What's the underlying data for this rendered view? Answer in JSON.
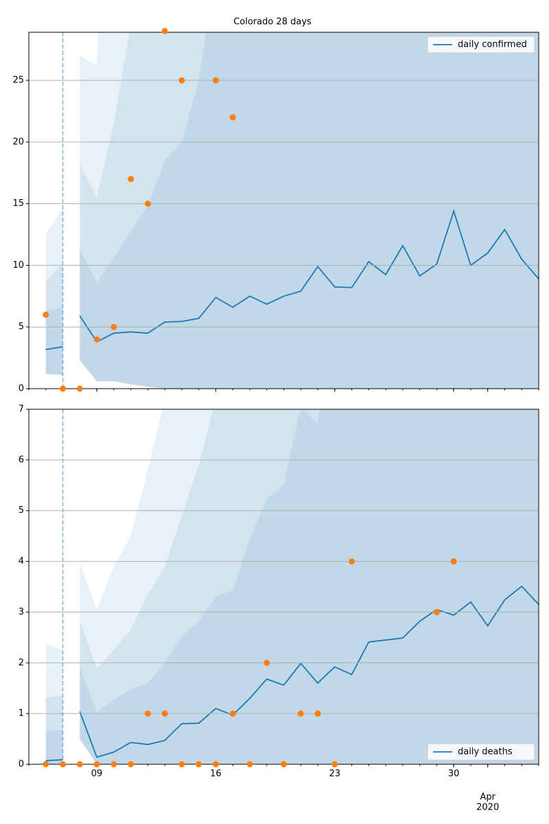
{
  "chart_data": [
    {
      "type": "line",
      "title": "Colorado 28 days",
      "x": [
        "2020-03-06",
        "2020-03-07",
        "2020-03-08",
        "2020-03-09",
        "2020-03-10",
        "2020-03-11",
        "2020-03-12",
        "2020-03-13",
        "2020-03-14",
        "2020-03-15",
        "2020-03-16",
        "2020-03-17",
        "2020-03-18",
        "2020-03-19",
        "2020-03-20",
        "2020-03-21",
        "2020-03-22",
        "2020-03-23",
        "2020-03-24",
        "2020-03-25",
        "2020-03-26",
        "2020-03-27",
        "2020-03-28",
        "2020-03-29",
        "2020-03-30",
        "2020-03-31",
        "2020-04-01",
        "2020-04-02",
        "2020-04-03",
        "2020-04-04"
      ],
      "series": [
        {
          "name": "daily confirmed",
          "color": "#1f77b4",
          "values": [
            3.17,
            3.4,
            5.9,
            3.8,
            4.5,
            4.6,
            4.5,
            5.4,
            5.45,
            5.7,
            7.4,
            6.6,
            7.5,
            6.85,
            7.5,
            7.9,
            9.9,
            8.25,
            8.2,
            10.3,
            9.25,
            11.6,
            9.15,
            10.1,
            14.4,
            10.0,
            11.0,
            12.9,
            10.5,
            8.9
          ]
        }
      ],
      "observed": {
        "color": "#ff7f0e",
        "values": [
          6,
          0,
          0,
          4,
          5,
          17,
          15,
          29,
          25,
          null,
          25,
          22,
          null,
          null,
          null,
          null,
          null,
          null,
          null,
          null,
          null,
          null,
          null,
          null,
          null,
          null,
          null,
          null,
          null,
          null
        ]
      },
      "bands": {
        "color": "#1f77b4",
        "alpha": 0.1,
        "lower": [
          1.2,
          1.1,
          2.3,
          0.6,
          0.6,
          0.35,
          0.15,
          0,
          0,
          0,
          0,
          0,
          0,
          0,
          0,
          0,
          0,
          0,
          0,
          0,
          0,
          0,
          0,
          0,
          0,
          0,
          0,
          0,
          0,
          0
        ],
        "upper": [
          [
            12.6,
            14.6,
            27,
            26.2,
            60,
            60,
            60,
            60,
            60,
            60,
            60,
            60,
            60,
            60,
            60,
            60,
            60,
            60,
            60,
            60,
            60,
            60,
            60,
            60,
            60,
            60,
            60,
            60,
            60,
            60
          ],
          [
            8.7,
            10.2,
            18.2,
            15.5,
            21.5,
            29.5,
            40,
            40,
            40,
            40,
            40,
            40,
            40,
            40,
            40,
            40,
            40,
            40,
            40,
            40,
            40,
            40,
            40,
            40,
            40,
            40,
            40,
            40,
            40,
            40
          ],
          [
            6.3,
            6.6,
            11.3,
            8.6,
            10.6,
            12.8,
            14.8,
            18.5,
            20,
            25,
            34,
            40,
            40,
            40,
            40,
            40,
            40,
            40,
            40,
            40,
            40,
            40,
            40,
            40,
            40,
            40,
            40,
            40,
            40,
            40
          ]
        ]
      },
      "vline": "2020-03-07",
      "xlim": [
        "2020-03-05",
        "2020-04-04"
      ],
      "xticks": [
        {
          "value": "2020-03-09",
          "label": "09"
        },
        {
          "value": "2020-03-16",
          "label": "16"
        },
        {
          "value": "2020-03-23",
          "label": "23"
        },
        {
          "value": "2020-03-30",
          "label": "30"
        },
        {
          "value": "2020-04-01",
          "label": "Apr",
          "sublabel": "2020"
        }
      ],
      "show_xtick_labels": false,
      "ylim": [
        0,
        28.9
      ],
      "yticks": [
        0,
        5,
        10,
        15,
        20,
        25
      ],
      "grid": true,
      "legend": "upper right"
    },
    {
      "type": "line",
      "x": [
        "2020-03-06",
        "2020-03-07",
        "2020-03-08",
        "2020-03-09",
        "2020-03-10",
        "2020-03-11",
        "2020-03-12",
        "2020-03-13",
        "2020-03-14",
        "2020-03-15",
        "2020-03-16",
        "2020-03-17",
        "2020-03-18",
        "2020-03-19",
        "2020-03-20",
        "2020-03-21",
        "2020-03-22",
        "2020-03-23",
        "2020-03-24",
        "2020-03-25",
        "2020-03-26",
        "2020-03-27",
        "2020-03-28",
        "2020-03-29",
        "2020-03-30",
        "2020-03-31",
        "2020-04-01",
        "2020-04-02",
        "2020-04-03",
        "2020-04-04"
      ],
      "series": [
        {
          "name": "daily deaths",
          "color": "#1f77b4",
          "values": [
            0.07,
            0.09,
            1.04,
            0.14,
            0.24,
            0.43,
            0.39,
            0.47,
            0.8,
            0.81,
            1.1,
            0.97,
            1.3,
            1.68,
            1.56,
            1.99,
            1.6,
            1.92,
            1.77,
            2.41,
            2.45,
            2.49,
            2.82,
            3.05,
            2.94,
            3.2,
            2.73,
            3.24,
            3.51,
            3.15
          ]
        }
      ],
      "observed": {
        "color": "#ff7f0e",
        "values": [
          0,
          0,
          0,
          0,
          0,
          0,
          1,
          1,
          0,
          0,
          0,
          1,
          0,
          2,
          0,
          1,
          1,
          0,
          4,
          null,
          null,
          null,
          null,
          3,
          4,
          null,
          null,
          null,
          null,
          null
        ]
      },
      "bands": {
        "color": "#1f77b4",
        "alpha": 0.1,
        "lower": [
          0,
          0,
          0.5,
          0,
          0,
          0,
          0,
          0,
          0,
          0,
          0,
          0,
          0,
          0,
          0,
          0,
          0,
          0,
          0,
          0,
          0,
          0,
          0,
          0,
          0,
          0,
          0,
          0,
          0,
          0
        ],
        "upper": [
          [
            2.37,
            2.25,
            3.96,
            3.05,
            3.9,
            4.5,
            5.8,
            7.2,
            10,
            10,
            10,
            10,
            10,
            10,
            10,
            10,
            10,
            10,
            10,
            10,
            10,
            10,
            10,
            10,
            10,
            10,
            10,
            10,
            10,
            10
          ],
          [
            1.31,
            1.35,
            2.83,
            1.88,
            2.25,
            2.65,
            3.35,
            3.9,
            4.9,
            5.9,
            7.2,
            10,
            10,
            10,
            10,
            10,
            10,
            10,
            10,
            10,
            10,
            10,
            10,
            10,
            10,
            10,
            10,
            10,
            10,
            10
          ],
          [
            0.65,
            0.68,
            1.92,
            1.02,
            1.27,
            1.48,
            1.6,
            2.0,
            2.52,
            2.82,
            3.3,
            3.44,
            4.45,
            5.23,
            5.5,
            7.05,
            6.7,
            10,
            10,
            10,
            10,
            10,
            10,
            10,
            10,
            10,
            10,
            10,
            10,
            10
          ]
        ]
      },
      "vline": "2020-03-07",
      "xlim": [
        "2020-03-05",
        "2020-04-04"
      ],
      "xticks": [
        {
          "value": "2020-03-09",
          "label": "09"
        },
        {
          "value": "2020-03-16",
          "label": "16"
        },
        {
          "value": "2020-03-23",
          "label": "23"
        },
        {
          "value": "2020-03-30",
          "label": "30"
        },
        {
          "value": "2020-04-01",
          "label": "Apr",
          "sublabel": "2020"
        }
      ],
      "show_xtick_labels": true,
      "ylim": [
        0,
        7
      ],
      "yticks": [
        0,
        1,
        2,
        3,
        4,
        5,
        6,
        7
      ],
      "grid": true,
      "legend": "lower right"
    }
  ]
}
